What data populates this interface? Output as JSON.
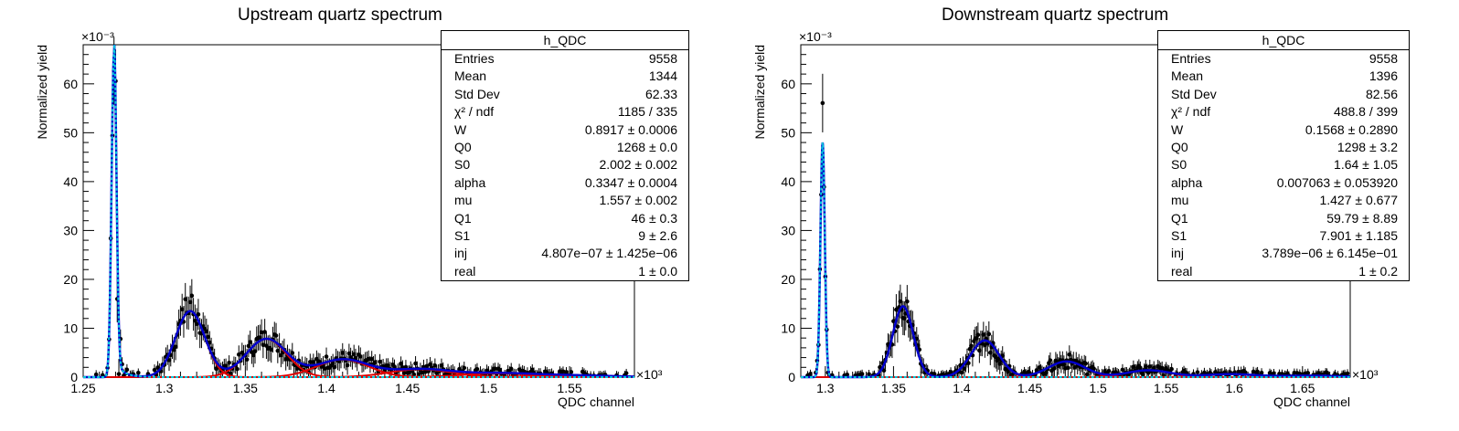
{
  "chart_data": [
    {
      "type": "scatter",
      "title": "Upstream quartz spectrum",
      "xlabel": "QDC channel",
      "ylabel": "Normalized yield",
      "x_multiplier": "×10³",
      "y_multiplier": "×10⁻³",
      "xlim": [
        1250,
        1590
      ],
      "ylim": [
        0,
        68
      ],
      "xticks": [
        1250,
        1300,
        1350,
        1400,
        1450,
        1500,
        1550
      ],
      "xtick_labels": [
        "1.25",
        "1.3",
        "1.35",
        "1.4",
        "1.45",
        "1.5",
        "1.55"
      ],
      "yticks": [
        0,
        10,
        20,
        30,
        40,
        50,
        60
      ],
      "ytick_labels": [
        "0",
        "10",
        "20",
        "30",
        "40",
        "50",
        "60"
      ],
      "legend_position": "top-right",
      "stats": {
        "name": "h_QDC",
        "rows": [
          {
            "label": "Entries",
            "value": "9558"
          },
          {
            "label": "Mean",
            "value": "1344"
          },
          {
            "label": "Std Dev",
            "value": "62.33"
          },
          {
            "label": "χ² / ndf",
            "value": "1185 / 335"
          },
          {
            "label": "W",
            "value": "0.8917 ± 0.0006"
          },
          {
            "label": "Q0",
            "value": "1268 ± 0.0"
          },
          {
            "label": "S0",
            "value": "2.002 ± 0.002"
          },
          {
            "label": "alpha",
            "value": "0.3347 ± 0.0004"
          },
          {
            "label": "mu",
            "value": "1.557 ± 0.002"
          },
          {
            "label": "Q1",
            "value": "46 ± 0.3"
          },
          {
            "label": "S1",
            "value": "9 ± 2.6"
          },
          {
            "label": "inj",
            "value": "4.807e−07 ± 1.425e−06"
          },
          {
            "label": "real",
            "value": "1 ± 0.0"
          }
        ]
      },
      "model": {
        "pedestal": {
          "mean": 1269,
          "sigma": 1.5,
          "amp": 66,
          "tail_amp": 3.5,
          "tail_decay": 5
        },
        "peaks": [
          {
            "mean": 1316,
            "sigma": 9,
            "amp": 13.5
          },
          {
            "mean": 1363,
            "sigma": 12.5,
            "amp": 7.8
          },
          {
            "mean": 1410,
            "sigma": 16,
            "amp": 3.6
          },
          {
            "mean": 1458,
            "sigma": 19,
            "amp": 1.6
          },
          {
            "mean": 1506,
            "sigma": 22,
            "amp": 0.75
          },
          {
            "mean": 1552,
            "sigma": 25,
            "amp": 0.35
          }
        ],
        "data_offsets": [
          {
            "x": 1269,
            "dy": -4
          },
          {
            "x": 1270,
            "dy": 5
          },
          {
            "x": 1271,
            "dy": -11
          },
          {
            "x": 1272,
            "dy": -8
          },
          {
            "x": 1273,
            "dy": 3
          },
          {
            "x": 1313,
            "dy": 3.5
          },
          {
            "x": 1317,
            "dy": 3.5
          }
        ],
        "data_xmax": 1585
      },
      "colors": {
        "data": "#000000",
        "total": "#0000cc",
        "components": "#dd0000",
        "pedestal": "#00ccdd"
      }
    },
    {
      "type": "scatter",
      "title": "Downstream quartz spectrum",
      "xlabel": "QDC channel",
      "ylabel": "Normalized yield",
      "x_multiplier": "×10³",
      "y_multiplier": "×10⁻³",
      "xlim": [
        1282,
        1685
      ],
      "ylim": [
        0,
        68
      ],
      "xticks": [
        1300,
        1350,
        1400,
        1450,
        1500,
        1550,
        1600,
        1650
      ],
      "xtick_labels": [
        "1.3",
        "1.35",
        "1.4",
        "1.45",
        "1.5",
        "1.55",
        "1.6",
        "1.65"
      ],
      "yticks": [
        0,
        10,
        20,
        30,
        40,
        50,
        60
      ],
      "ytick_labels": [
        "0",
        "10",
        "20",
        "30",
        "40",
        "50",
        "60"
      ],
      "legend_position": "top-right",
      "stats": {
        "name": "h_QDC",
        "rows": [
          {
            "label": "Entries",
            "value": "9558"
          },
          {
            "label": "Mean",
            "value": "1396"
          },
          {
            "label": "Std Dev",
            "value": "82.56"
          },
          {
            "label": "χ² / ndf",
            "value": "488.8 / 399"
          },
          {
            "label": "W",
            "value": "0.1568 ± 0.2890"
          },
          {
            "label": "Q0",
            "value": "1298 ± 3.2"
          },
          {
            "label": "S0",
            "value": "1.64 ± 1.05"
          },
          {
            "label": "alpha",
            "value": "0.007063 ± 0.053920"
          },
          {
            "label": "mu",
            "value": "1.427 ± 0.677"
          },
          {
            "label": "Q1",
            "value": "59.79 ± 8.89"
          },
          {
            "label": "S1",
            "value": "7.901 ± 1.185"
          },
          {
            "label": "inj",
            "value": "3.789e−06 ± 6.145e−01"
          },
          {
            "label": "real",
            "value": "1 ± 0.2"
          }
        ]
      },
      "model": {
        "pedestal": {
          "mean": 1298,
          "sigma": 1.6,
          "amp": 48,
          "tail_amp": 0,
          "tail_decay": 5
        },
        "peaks": [
          {
            "mean": 1357,
            "sigma": 7.5,
            "amp": 14.5
          },
          {
            "mean": 1417,
            "sigma": 10.5,
            "amp": 7.5
          },
          {
            "mean": 1477,
            "sigma": 13.5,
            "amp": 3.2
          },
          {
            "mean": 1537,
            "sigma": 16,
            "amp": 1.4
          },
          {
            "mean": 1597,
            "sigma": 19,
            "amp": 0.6
          },
          {
            "mean": 1657,
            "sigma": 22,
            "amp": 0.3
          }
        ],
        "data_offsets": [
          {
            "x": 1298,
            "dy": 11
          },
          {
            "x": 1297,
            "dy": -3
          }
        ],
        "data_xmax": 1683
      },
      "colors": {
        "data": "#000000",
        "total": "#0000cc",
        "components": "#dd0000",
        "pedestal": "#00ccdd"
      }
    }
  ]
}
